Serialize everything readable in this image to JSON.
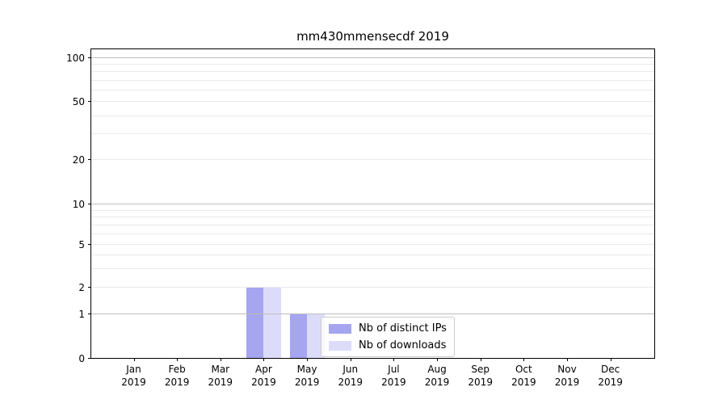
{
  "chart_data": {
    "type": "bar",
    "title": "mm430mmensecdf 2019",
    "categories": [
      "Jan",
      "Feb",
      "Mar",
      "Apr",
      "May",
      "Jun",
      "Jul",
      "Aug",
      "Sep",
      "Oct",
      "Nov",
      "Dec"
    ],
    "category_year": "2019",
    "series": [
      {
        "name": "Nb of distinct IPs",
        "color": "#a5a5f0",
        "values": [
          0,
          0,
          0,
          2,
          1,
          0,
          0,
          0,
          0,
          0,
          0,
          0
        ]
      },
      {
        "name": "Nb of downloads",
        "color": "#dcdcfa",
        "values": [
          0,
          0,
          0,
          2,
          1,
          0,
          0,
          0,
          0,
          0,
          0,
          0
        ]
      }
    ],
    "yscale": "symlog",
    "ylim": [
      0,
      100
    ],
    "yticks": [
      0,
      1,
      2,
      5,
      10,
      20,
      50,
      100
    ],
    "y_major_gridlines": [
      1,
      10,
      100
    ],
    "y_minor_gridlines": [
      2,
      3,
      4,
      5,
      6,
      7,
      8,
      9,
      20,
      30,
      40,
      50,
      60,
      70,
      80,
      90
    ],
    "grid": "both",
    "legend_position": "lower center-right inside plot",
    "colors": {
      "major_grid": "#bdbdbd",
      "minor_grid": "#eaeaea",
      "spine": "#000000",
      "legend_border": "#cccccc"
    }
  }
}
